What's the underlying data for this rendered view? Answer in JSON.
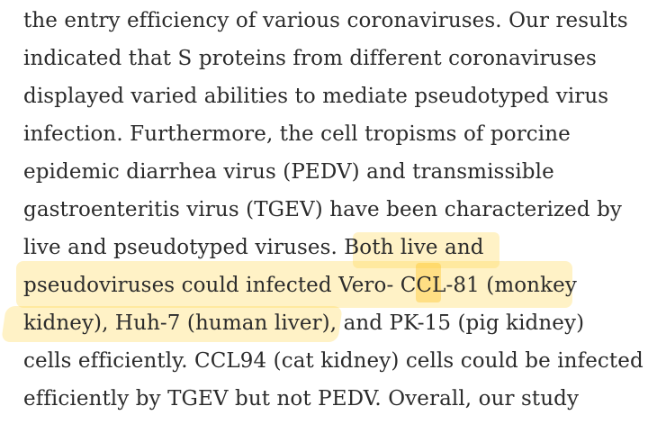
{
  "article": {
    "highlight_color": "#ffd84d",
    "text_color": "#2b2b2b",
    "lines": [
      "the entry efficiency of various coronaviruses. Our results",
      "indicated that S proteins from different coronaviruses",
      "displayed varied abilities to mediate pseudotyped virus",
      "infection. Furthermore, the cell tropisms of porcine",
      "epidemic diarrhea virus (PEDV) and transmissible",
      "gastroenteritis virus (TGEV) have been characterized by",
      "live and pseudotyped viruses. Both live and",
      "pseudoviruses could infected Vero- CCL-81 (monkey",
      "kidney), Huh-7 (human liver), and PK-15 (pig kidney)",
      "cells efficiently. CCL94 (cat kidney) cells could be infected",
      "efficiently by TGEV but not PEDV. Overall, our study"
    ]
  }
}
